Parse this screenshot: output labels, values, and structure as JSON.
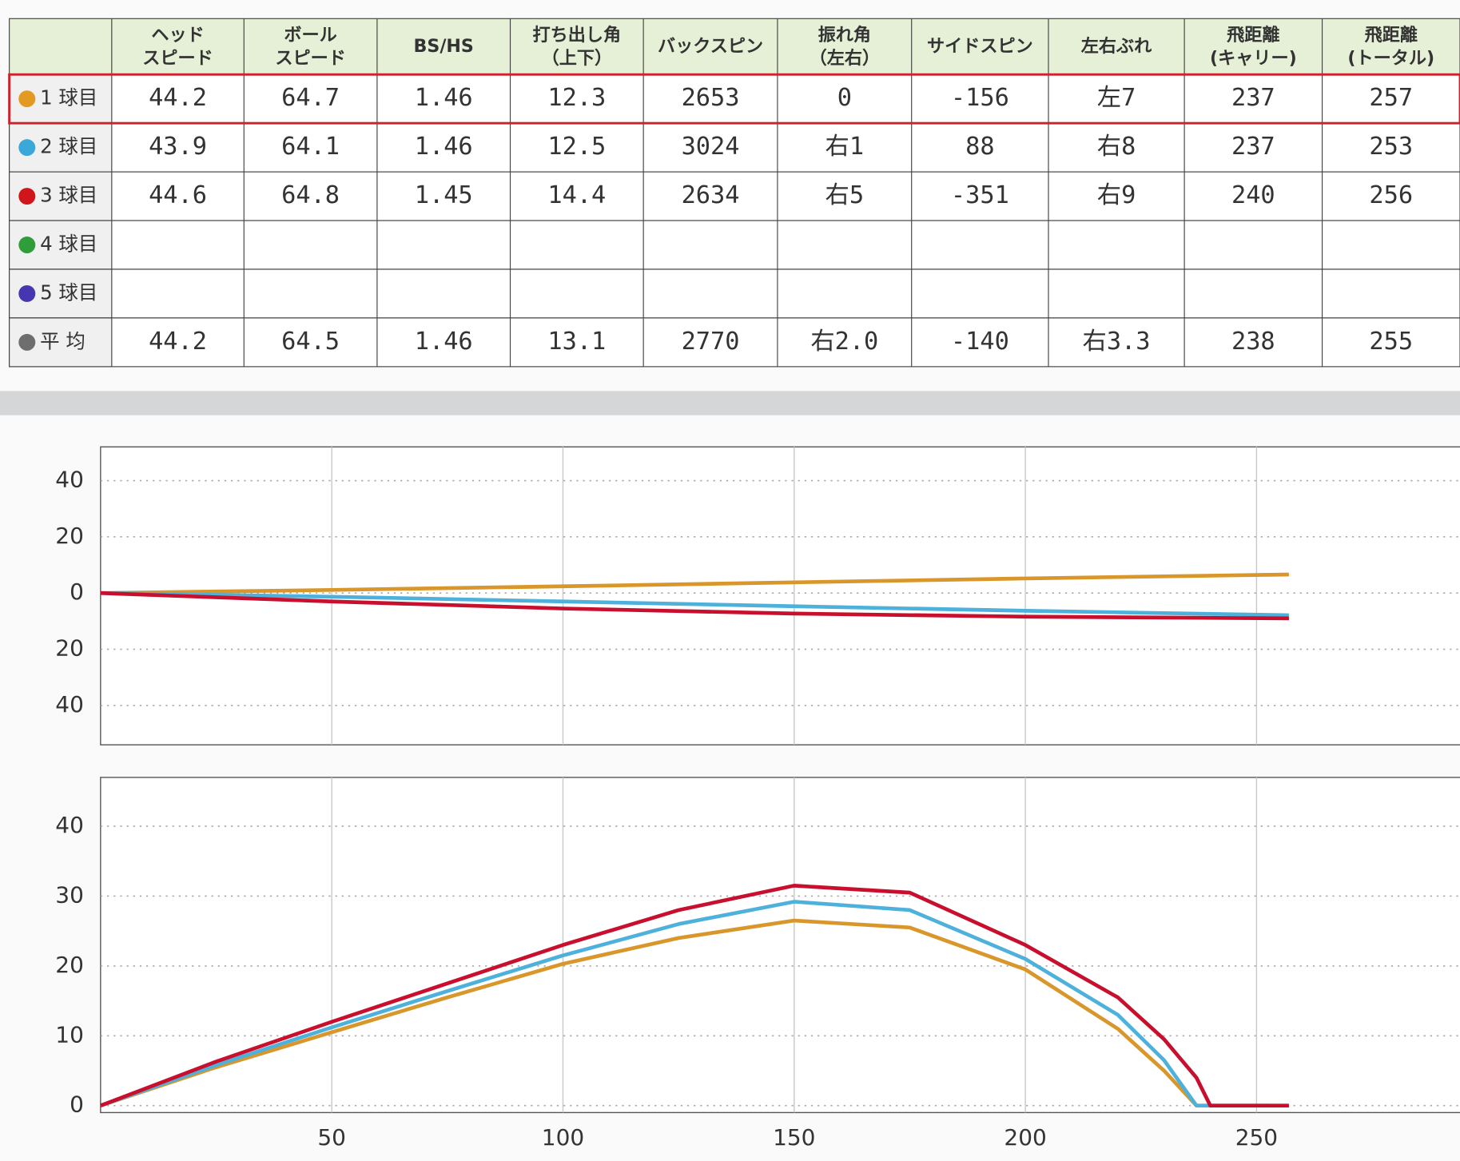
{
  "table": {
    "columns": [
      [
        "ヘッド",
        "スピード"
      ],
      [
        "ボール",
        "スピード"
      ],
      [
        "BS/HS"
      ],
      [
        "打ち出し角",
        "（上下）"
      ],
      [
        "バックスピン"
      ],
      [
        "振れ角",
        "（左右）"
      ],
      [
        "サイドスピン"
      ],
      [
        "左右ぶれ"
      ],
      [
        "飛距離",
        "(キャリー)"
      ],
      [
        "飛距離",
        "(トータル)"
      ]
    ],
    "selected_row": 0,
    "rows": [
      {
        "label": "1 球目",
        "color": "#e39a22",
        "cells": [
          44.2,
          64.7,
          1.46,
          12.3,
          2653,
          0,
          -156,
          "左7",
          237,
          257
        ]
      },
      {
        "label": "2 球目",
        "color": "#3aa8d8",
        "cells": [
          43.9,
          64.1,
          1.46,
          12.5,
          3024,
          "右1",
          88,
          "右8",
          237,
          253
        ]
      },
      {
        "label": "3 球目",
        "color": "#d0161c",
        "cells": [
          44.6,
          64.8,
          1.45,
          14.4,
          2634,
          "右5",
          -351,
          "右9",
          240,
          256
        ]
      },
      {
        "label": "4 球目",
        "color": "#2f9e3a",
        "cells": []
      },
      {
        "label": "5 球目",
        "color": "#4636b0",
        "cells": []
      },
      {
        "label": "平 均",
        "color": "#6e6e6e",
        "cells": [
          44.2,
          64.5,
          1.46,
          13.1,
          2770,
          "右2.0",
          -140,
          "右3.3",
          238,
          255
        ]
      }
    ]
  },
  "chart_data": [
    {
      "type": "line",
      "xlim": [
        0,
        294
      ],
      "ylim": [
        -54,
        52
      ],
      "xticks": [
        50,
        100,
        150,
        200,
        250
      ],
      "xtick_labels": false,
      "yticks": [
        {
          "value": -40,
          "label": "40"
        },
        {
          "value": -20,
          "label": "20"
        },
        0,
        20,
        40
      ],
      "grid": true,
      "x": [
        0,
        50,
        100,
        150,
        200,
        257
      ],
      "series": [
        {
          "color": "#d9962a",
          "values": [
            0,
            1.1,
            2.4,
            3.8,
            5.2,
            6.6
          ]
        },
        {
          "color": "#4db1dc",
          "values": [
            0,
            -1.3,
            -3,
            -4.7,
            -6.3,
            -7.9
          ]
        },
        {
          "color": "#c8102e",
          "values": [
            0,
            -3,
            -5.5,
            -7.3,
            -8.4,
            -9
          ]
        }
      ]
    },
    {
      "type": "line",
      "xlim": [
        0,
        294
      ],
      "ylim": [
        -1,
        47
      ],
      "xticks": [
        50,
        100,
        150,
        200,
        250
      ],
      "xtick_labels": true,
      "yticks": [
        0,
        10,
        20,
        30,
        40
      ],
      "grid": true,
      "x": [
        0,
        25,
        50,
        75,
        100,
        125,
        150,
        175,
        200,
        220,
        230,
        237,
        240,
        253,
        257
      ],
      "series": [
        {
          "color": "#d9962a",
          "values": [
            0,
            5.5,
            10.5,
            15.5,
            20.3,
            24,
            26.5,
            25.5,
            19.5,
            11,
            5,
            0,
            0,
            0,
            0
          ]
        },
        {
          "color": "#4db1dc",
          "values": [
            0,
            5.8,
            11.2,
            16.4,
            21.5,
            26,
            29.2,
            28,
            21,
            13,
            6.5,
            0,
            0,
            0,
            null
          ]
        },
        {
          "color": "#c8102e",
          "values": [
            0,
            6.3,
            12,
            17.5,
            23,
            28,
            31.5,
            30.5,
            23,
            15.5,
            9.5,
            4,
            0,
            0,
            0
          ]
        }
      ]
    }
  ]
}
